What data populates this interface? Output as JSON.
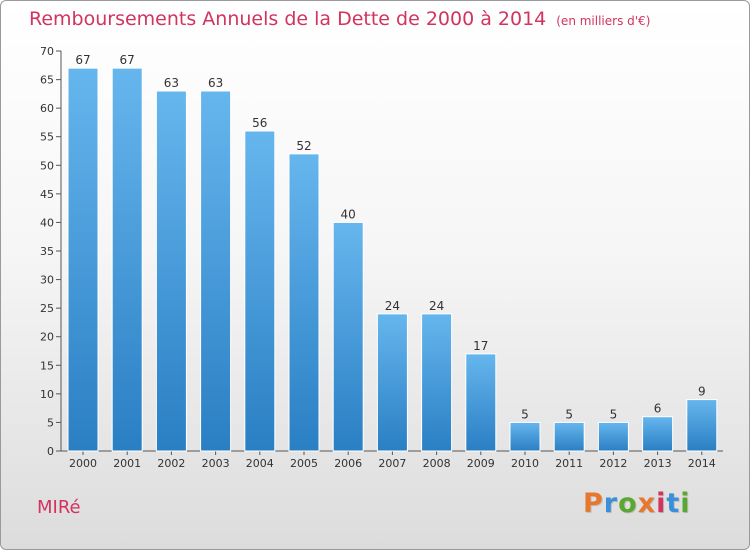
{
  "header": {
    "title": "Remboursements Annuels de la Dette de 2000 à 2014",
    "unit": "(en milliers d'€)"
  },
  "footer": {
    "commune": "MIRé",
    "brand": "Proxiti"
  },
  "colors": {
    "title": "#d2335f",
    "bar_top": "#66b6ee",
    "bar_bottom": "#2a7fc3",
    "brand_letters": [
      "#e8772e",
      "#3a8fd9",
      "#5aa832",
      "#e8772e",
      "#d2335f",
      "#3a8fd9",
      "#5aa832"
    ]
  },
  "chart_data": {
    "type": "bar",
    "title": "Remboursements Annuels de la Dette de 2000 à 2014",
    "subtitle": "(en milliers d'€)",
    "xlabel": "",
    "ylabel": "",
    "categories": [
      "2000",
      "2001",
      "2002",
      "2003",
      "2004",
      "2005",
      "2006",
      "2007",
      "2008",
      "2009",
      "2010",
      "2011",
      "2012",
      "2013",
      "2014"
    ],
    "values": [
      67,
      67,
      63,
      63,
      56,
      52,
      40,
      24,
      24,
      17,
      5,
      5,
      5,
      6,
      9
    ],
    "data_labels": [
      "67",
      "67",
      "63",
      "63",
      "56",
      "52",
      "40",
      "24",
      "24",
      "17",
      "5",
      "5",
      "5",
      "6",
      "9"
    ],
    "ylim": [
      0,
      70
    ],
    "yticks": [
      "0",
      "5",
      "10",
      "15",
      "20",
      "25",
      "30",
      "35",
      "40",
      "45",
      "50",
      "55",
      "60",
      "65",
      "70"
    ],
    "grid": false,
    "legend": "none"
  }
}
